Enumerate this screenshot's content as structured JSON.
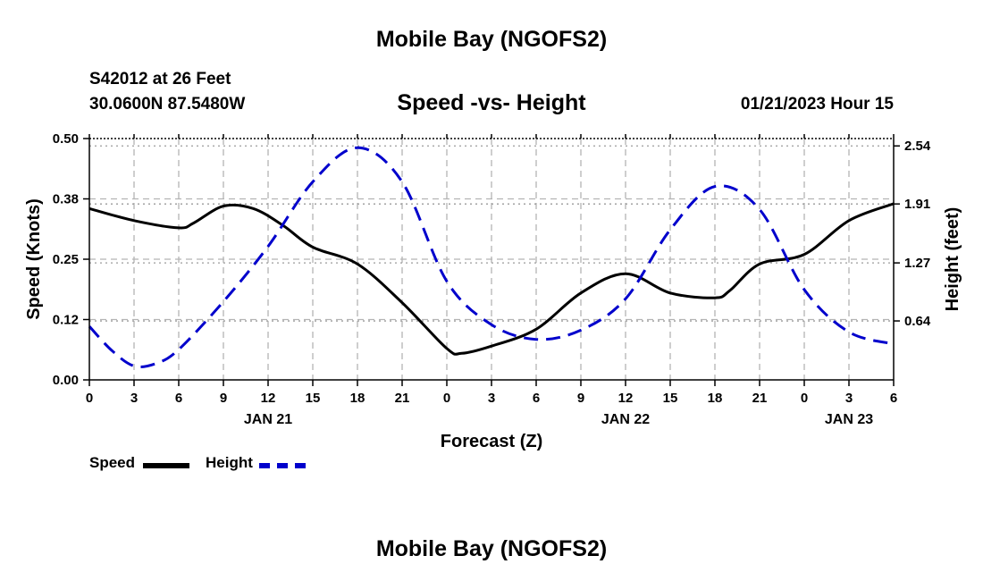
{
  "title_top": "Mobile Bay (NGOFS2)",
  "title_bottom": "Mobile Bay (NGOFS2)",
  "station_line": "S42012 at 26 Feet",
  "coords_line": "30.0600N  87.5480W",
  "run_line": "01/21/2023 Hour 15",
  "legend": {
    "speed_label": "Speed",
    "height_label": "Height"
  },
  "colors": {
    "speed": "#000000",
    "height": "#0000cc",
    "grid": "#b4b4b4"
  },
  "chart_data": {
    "type": "line",
    "title": "Speed -vs- Height",
    "xlabel": "Forecast (Z)",
    "ylabel": "Speed (Knots)",
    "y2label": "Height (feet)",
    "x_unit": "forecast hours from 00Z JAN 21",
    "xlim": [
      0,
      54
    ],
    "ylim": [
      0,
      0.5
    ],
    "y2lim": [
      0,
      2.62
    ],
    "x_ticks": [
      0,
      3,
      6,
      9,
      12,
      15,
      18,
      21,
      24,
      27,
      30,
      33,
      36,
      39,
      42,
      45,
      48,
      51,
      54
    ],
    "x_tick_labels": [
      "0",
      "3",
      "6",
      "9",
      "12",
      "15",
      "18",
      "21",
      "0",
      "3",
      "6",
      "9",
      "12",
      "15",
      "18",
      "21",
      "0",
      "3",
      "6"
    ],
    "date_labels": [
      {
        "x": 12,
        "label": "JAN 21"
      },
      {
        "x": 36,
        "label": "JAN 22"
      },
      {
        "x": 51,
        "label": "JAN 23"
      }
    ],
    "y_ticks": [
      0,
      0.125,
      0.25,
      0.375,
      0.5
    ],
    "y_tick_labels": [
      "0.00",
      "0.12",
      "0.25",
      "0.38",
      "0.50"
    ],
    "y2_ticks": [
      0.64,
      1.27,
      1.91,
      2.54
    ],
    "y2_tick_labels": [
      "0.64",
      "1.27",
      "1.91",
      "2.54"
    ],
    "grid": true,
    "series": [
      {
        "name": "Speed",
        "axis": "left",
        "style": "solid",
        "x": [
          0,
          3,
          6,
          7,
          9,
          11,
          13,
          15,
          18,
          21,
          24,
          25,
          27,
          30,
          33,
          36,
          39,
          42,
          43,
          45,
          48,
          51,
          54
        ],
        "y": [
          0.355,
          0.33,
          0.315,
          0.325,
          0.36,
          0.355,
          0.32,
          0.275,
          0.24,
          0.16,
          0.065,
          0.055,
          0.07,
          0.105,
          0.18,
          0.22,
          0.18,
          0.17,
          0.185,
          0.24,
          0.26,
          0.33,
          0.365
        ]
      },
      {
        "name": "Height",
        "axis": "right",
        "style": "dashed",
        "x": [
          0,
          1.5,
          3,
          4.5,
          6,
          9,
          12,
          15,
          18,
          21,
          24,
          27,
          30,
          33,
          36,
          39,
          42,
          45,
          48,
          51,
          54
        ],
        "y": [
          0.58,
          0.32,
          0.15,
          0.18,
          0.33,
          0.85,
          1.45,
          2.15,
          2.52,
          2.15,
          1.07,
          0.6,
          0.44,
          0.54,
          0.88,
          1.63,
          2.1,
          1.85,
          0.98,
          0.52,
          0.39
        ]
      }
    ]
  }
}
